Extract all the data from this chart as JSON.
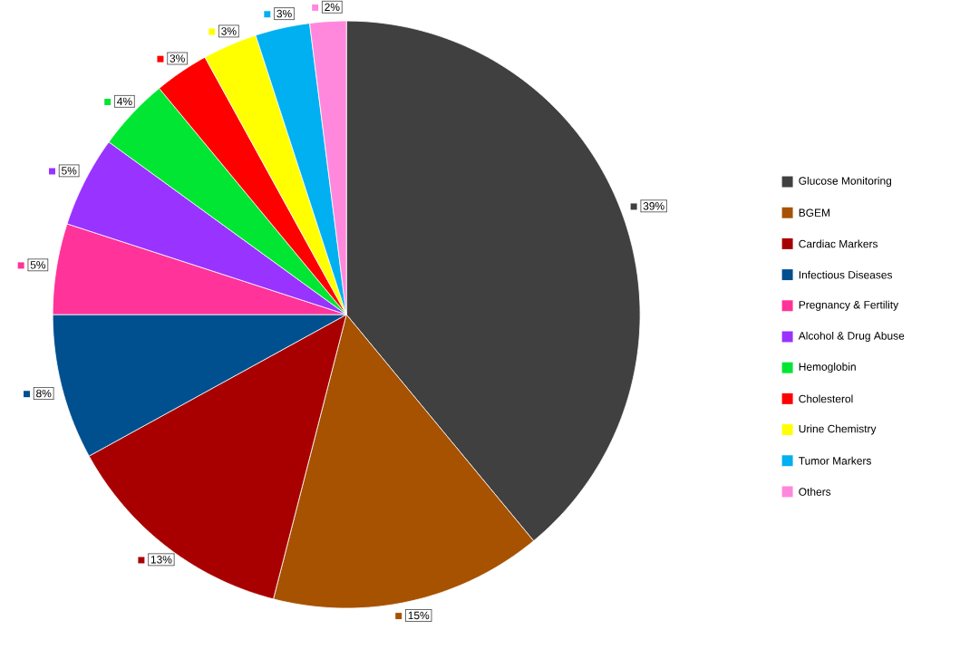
{
  "chart_data": {
    "type": "pie",
    "categories": [
      "Glucose Monitoring",
      "BGEM",
      "Cardiac Markers",
      "Infectious Diseases",
      "Pregnancy & Fertility",
      "Alcohol & Drug Abuse",
      "Hemoglobin",
      "Cholesterol",
      "Urine Chemistry",
      "Tumor Markers",
      "Others"
    ],
    "values": [
      39,
      15,
      13,
      8,
      5,
      5,
      4,
      3,
      3,
      3,
      2
    ],
    "colors": [
      "#404040",
      "#a65200",
      "#a80000",
      "#004f8f",
      "#ff3399",
      "#9933ff",
      "#00e633",
      "#ff0000",
      "#ffff00",
      "#00b0f0",
      "#ff88dd"
    ],
    "value_labels": [
      "39%",
      "15%",
      "13%",
      "8%",
      "5%",
      "5%",
      "4%",
      "3%",
      "3%",
      "3%",
      "2%"
    ],
    "legend": "right"
  }
}
